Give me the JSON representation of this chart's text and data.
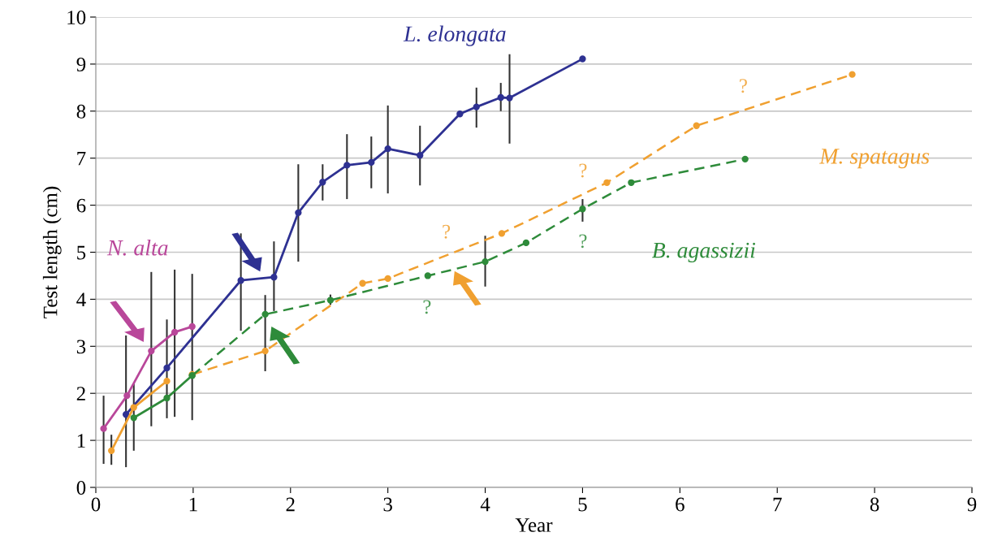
{
  "chart_data": {
    "type": "line",
    "xlabel": "Year",
    "ylabel": "Test length (cm)",
    "xlim": [
      0,
      9
    ],
    "xticks": [
      0,
      1,
      2,
      3,
      4,
      5,
      6,
      7,
      8,
      9
    ],
    "ylim": [
      0,
      10
    ],
    "yticks": [
      0,
      1,
      2,
      3,
      4,
      5,
      6,
      7,
      8,
      9,
      10
    ],
    "grid": "y",
    "marker": "circle",
    "series": [
      {
        "name": "L. elongata",
        "color": "#2e3192",
        "line_style": "solid",
        "x": [
          0.31,
          0.73,
          1.49,
          1.83,
          2.08,
          2.33,
          2.58,
          2.83,
          3.0,
          3.33,
          3.74,
          3.91,
          4.16,
          4.25,
          5.0
        ],
        "values": [
          1.55,
          2.54,
          4.4,
          4.47,
          5.84,
          6.49,
          6.85,
          6.91,
          7.2,
          7.06,
          7.94,
          8.09,
          8.29,
          8.28,
          9.11
        ],
        "errors": [
          [
            0.43,
            3.23
          ],
          [
            1.47,
            3.57
          ],
          [
            3.33,
            5.4
          ],
          [
            3.75,
            5.23
          ],
          [
            4.8,
            6.87
          ],
          [
            6.1,
            6.87
          ],
          [
            6.13,
            7.51
          ],
          [
            6.36,
            7.46
          ],
          [
            6.25,
            8.12
          ],
          [
            6.42,
            7.69
          ],
          null,
          [
            7.65,
            8.5
          ],
          [
            8.0,
            8.6
          ],
          [
            7.31,
            9.21
          ],
          null
        ]
      },
      {
        "name": "N. alta",
        "color": "#b9479a",
        "line_style": "solid",
        "x": [
          0.08,
          0.32,
          0.57,
          0.81,
          0.99
        ],
        "values": [
          1.25,
          1.95,
          2.9,
          3.3,
          3.42
        ],
        "errors": [
          [
            0.5,
            1.95
          ],
          null,
          [
            1.3,
            4.58
          ],
          [
            1.5,
            4.63
          ],
          [
            1.43,
            4.54
          ]
        ]
      },
      {
        "name": "M. spatagus",
        "color": "#f0a030",
        "line_style": "solid",
        "x": [
          0.16,
          0.39,
          0.73
        ],
        "values": [
          0.78,
          1.7,
          2.26
        ],
        "errors": [
          [
            0.48,
            1.12
          ],
          null,
          null
        ]
      },
      {
        "name": "B. agassizii",
        "color": "#2e8b3a",
        "line_style": "solid",
        "x": [
          0.39,
          0.73,
          0.99
        ],
        "values": [
          1.48,
          1.9,
          2.38
        ],
        "errors": [
          [
            0.78,
            2.21
          ],
          null,
          null
        ]
      },
      {
        "color": "#f0a030",
        "line_style": "dashed",
        "x": [
          0.99,
          1.74,
          2.74,
          3.0,
          4.17,
          5.25,
          6.17,
          7.77
        ],
        "values": [
          2.4,
          2.9,
          4.34,
          4.44,
          5.4,
          6.48,
          7.69,
          8.78
        ]
      },
      {
        "color": "#2e8b3a",
        "line_style": "dashed",
        "x": [
          0.99,
          1.74,
          2.41,
          3.41,
          4.0,
          4.42,
          5.0,
          5.5,
          6.67
        ],
        "values": [
          2.38,
          3.68,
          3.98,
          4.5,
          4.8,
          5.2,
          5.92,
          6.48,
          6.98
        ],
        "errors": [
          null,
          [
            2.47,
            4.09
          ],
          [
            3.88,
            4.1
          ],
          null,
          [
            4.27,
            5.35
          ],
          null,
          [
            5.65,
            6.13
          ],
          null,
          null
        ]
      }
    ],
    "annotations": [
      "?",
      "?",
      "?",
      "?",
      "?"
    ]
  }
}
